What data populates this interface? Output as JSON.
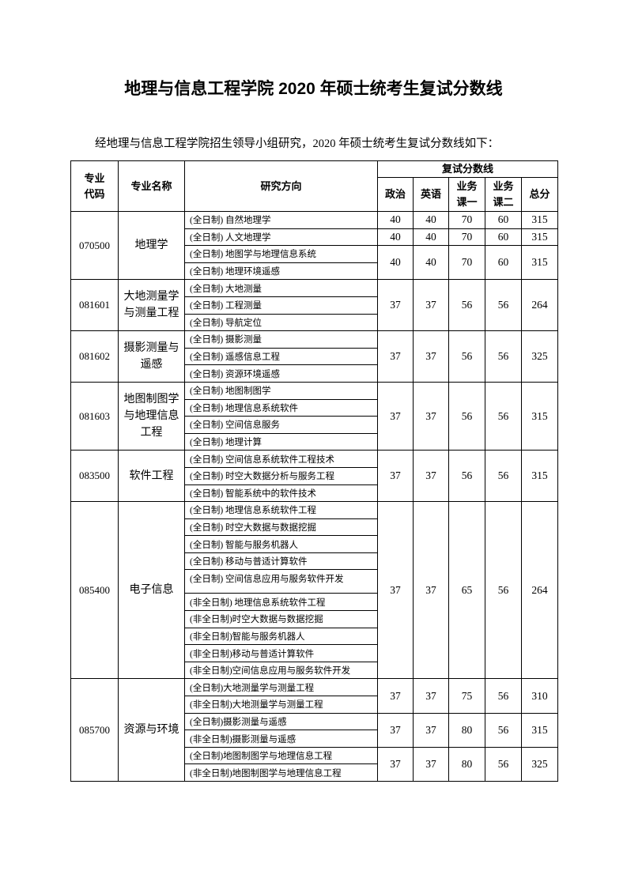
{
  "title": "地理与信息工程学院 2020 年硕士统考生复试分数线",
  "intro": "经地理与信息工程学院招生领导小组研究，2020 年硕士统考生复试分数线如下：",
  "headers": {
    "code": "专业代码",
    "name": "专业名称",
    "direction": "研究方向",
    "scores_group": "复试分数线",
    "politics": "政治",
    "english": "英语",
    "course1": "业务课一",
    "course2": "业务课二",
    "total": "总分"
  },
  "majors": [
    {
      "code": "070500",
      "name": "地理学",
      "groups": [
        {
          "directions": [
            "(全日制) 自然地理学"
          ],
          "scores": [
            "40",
            "40",
            "70",
            "60",
            "315"
          ]
        },
        {
          "directions": [
            "(全日制) 人文地理学"
          ],
          "scores": [
            "40",
            "40",
            "70",
            "60",
            "315"
          ]
        },
        {
          "directions": [
            "(全日制) 地图学与地理信息系统",
            "(全日制) 地理环境遥感"
          ],
          "scores": [
            "40",
            "40",
            "70",
            "60",
            "315"
          ]
        }
      ]
    },
    {
      "code": "081601",
      "name": "大地测量学与测量工程",
      "groups": [
        {
          "directions": [
            "(全日制) 大地测量",
            "(全日制) 工程测量",
            "(全日制) 导航定位"
          ],
          "scores": [
            "37",
            "37",
            "56",
            "56",
            "264"
          ]
        }
      ]
    },
    {
      "code": "081602",
      "name": "摄影测量与遥感",
      "groups": [
        {
          "directions": [
            "(全日制) 摄影测量",
            "(全日制) 遥感信息工程",
            "(全日制) 资源环境遥感"
          ],
          "scores": [
            "37",
            "37",
            "56",
            "56",
            "325"
          ]
        }
      ]
    },
    {
      "code": "081603",
      "name": "地图制图学与地理信息工程",
      "groups": [
        {
          "directions": [
            "(全日制) 地图制图学",
            "(全日制) 地理信息系统软件",
            "(全日制) 空间信息服务",
            "(全日制) 地理计算"
          ],
          "scores": [
            "37",
            "37",
            "56",
            "56",
            "315"
          ]
        }
      ]
    },
    {
      "code": "083500",
      "name": "软件工程",
      "groups": [
        {
          "directions": [
            "(全日制) 空间信息系统软件工程技术",
            "(全日制) 时空大数据分析与服务工程",
            "(全日制) 智能系统中的软件技术"
          ],
          "scores": [
            "37",
            "37",
            "56",
            "56",
            "315"
          ]
        }
      ]
    },
    {
      "code": "085400",
      "name": "电子信息",
      "groups": [
        {
          "directions": [
            "(全日制) 地理信息系统软件工程",
            "(全日制) 时空大数据与数据挖掘",
            "(全日制) 智能与服务机器人",
            "(全日制) 移动与普适计算软件",
            "(全日制) 空间信息应用与服务软件开发",
            "(非全日制) 地理信息系统软件工程",
            "(非全日制)时空大数据与数据挖掘",
            "(非全日制)智能与服务机器人",
            "(非全日制)移动与普适计算软件",
            "(非全日制)空间信息应用与服务软件开发"
          ],
          "scores": [
            "37",
            "37",
            "65",
            "56",
            "264"
          ]
        }
      ]
    },
    {
      "code": "085700",
      "name": "资源与环境",
      "groups": [
        {
          "directions": [
            "(全日制)大地测量学与测量工程",
            "(非全日制)大地测量学与测量工程"
          ],
          "scores": [
            "37",
            "37",
            "75",
            "56",
            "310"
          ]
        },
        {
          "directions": [
            "(全日制)摄影测量与遥感",
            "(非全日制)摄影测量与遥感"
          ],
          "scores": [
            "37",
            "37",
            "80",
            "56",
            "315"
          ]
        },
        {
          "directions": [
            "(全日制)地图制图学与地理信息工程",
            "(非全日制)地图制图学与地理信息工程"
          ],
          "scores": [
            "37",
            "37",
            "80",
            "56",
            "325"
          ]
        }
      ]
    }
  ]
}
